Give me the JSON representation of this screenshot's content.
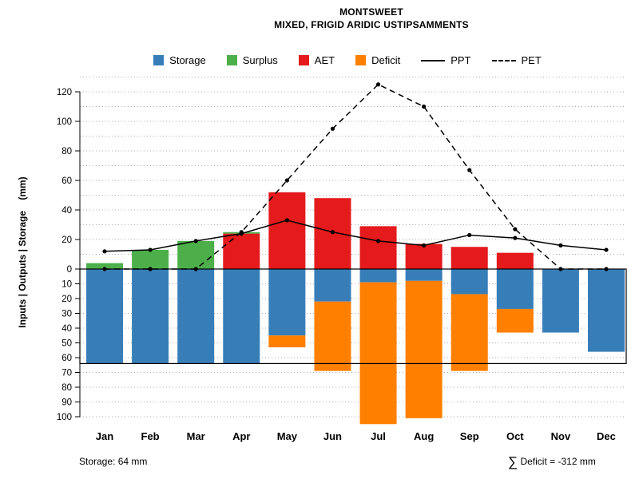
{
  "title": "MONTSWEET",
  "subtitle": "MIXED, FRIGID ARIDIC USTIPSAMMENTS",
  "y_axis_title": "Inputs | Outputs | Storage    (mm)",
  "footer": {
    "storage_note": "Storage: 64 mm",
    "deficit_symbol": "∑",
    "deficit_text": " Deficit = -312 mm"
  },
  "legend": {
    "items": [
      {
        "label": "Storage",
        "type": "box",
        "color": "#377EB8"
      },
      {
        "label": "Surplus",
        "type": "box",
        "color": "#4DAF4A"
      },
      {
        "label": "AET",
        "type": "box",
        "color": "#E41A1C"
      },
      {
        "label": "Deficit",
        "type": "box",
        "color": "#FF7F00"
      },
      {
        "label": "PPT",
        "type": "line-solid",
        "color": "#000000"
      },
      {
        "label": "PET",
        "type": "line-dashed",
        "color": "#000000"
      }
    ]
  },
  "chart_data": {
    "type": "bar",
    "subtype": "monthly-water-balance with overlaid PPT/PET lines; storage and deficit plotted downward below zero",
    "categories": [
      "Jan",
      "Feb",
      "Mar",
      "Apr",
      "May",
      "Jun",
      "Jul",
      "Aug",
      "Sep",
      "Oct",
      "Nov",
      "Dec"
    ],
    "series": [
      {
        "name": "Storage",
        "role": "bar-down",
        "color": "#377EB8",
        "values": [
          64,
          64,
          64,
          64,
          45,
          22,
          9,
          8,
          17,
          27,
          43,
          56
        ]
      },
      {
        "name": "Deficit",
        "role": "bar-down-stacked-below-storage",
        "color": "#FF7F00",
        "values": [
          0,
          0,
          0,
          0,
          8,
          47,
          96,
          93,
          52,
          16,
          0,
          0
        ]
      },
      {
        "name": "AET",
        "role": "bar-up",
        "color": "#E41A1C",
        "values": [
          0,
          0,
          0,
          24,
          52,
          48,
          29,
          17,
          15,
          11,
          0,
          0
        ]
      },
      {
        "name": "Surplus",
        "role": "bar-up-stacked-on-AET",
        "color": "#4DAF4A",
        "values": [
          4,
          13,
          19,
          1,
          0,
          0,
          0,
          0,
          0,
          0,
          0,
          0
        ]
      },
      {
        "name": "PPT",
        "role": "line-solid-with-points",
        "color": "#000000",
        "values": [
          12,
          13,
          19,
          24,
          33,
          25,
          19,
          16,
          23,
          21,
          16,
          13
        ]
      },
      {
        "name": "PET",
        "role": "line-dashed-with-points",
        "color": "#000000",
        "values": [
          0,
          0,
          0,
          25,
          60,
          95,
          125,
          110,
          67,
          27,
          0,
          0
        ]
      }
    ],
    "ylabel": "Inputs | Outputs | Storage (mm)",
    "ylim": [
      -107,
      130
    ],
    "y_ticks_upper": [
      0,
      20,
      40,
      60,
      80,
      100,
      120
    ],
    "y_ticks_lower": [
      10,
      20,
      30,
      40,
      50,
      60,
      70,
      80,
      90,
      100
    ],
    "grid": "dotted horizontal every 10 mm",
    "awc_line_mm": 64,
    "deficit_sum_mm": -312,
    "legend_position": "top-center"
  }
}
